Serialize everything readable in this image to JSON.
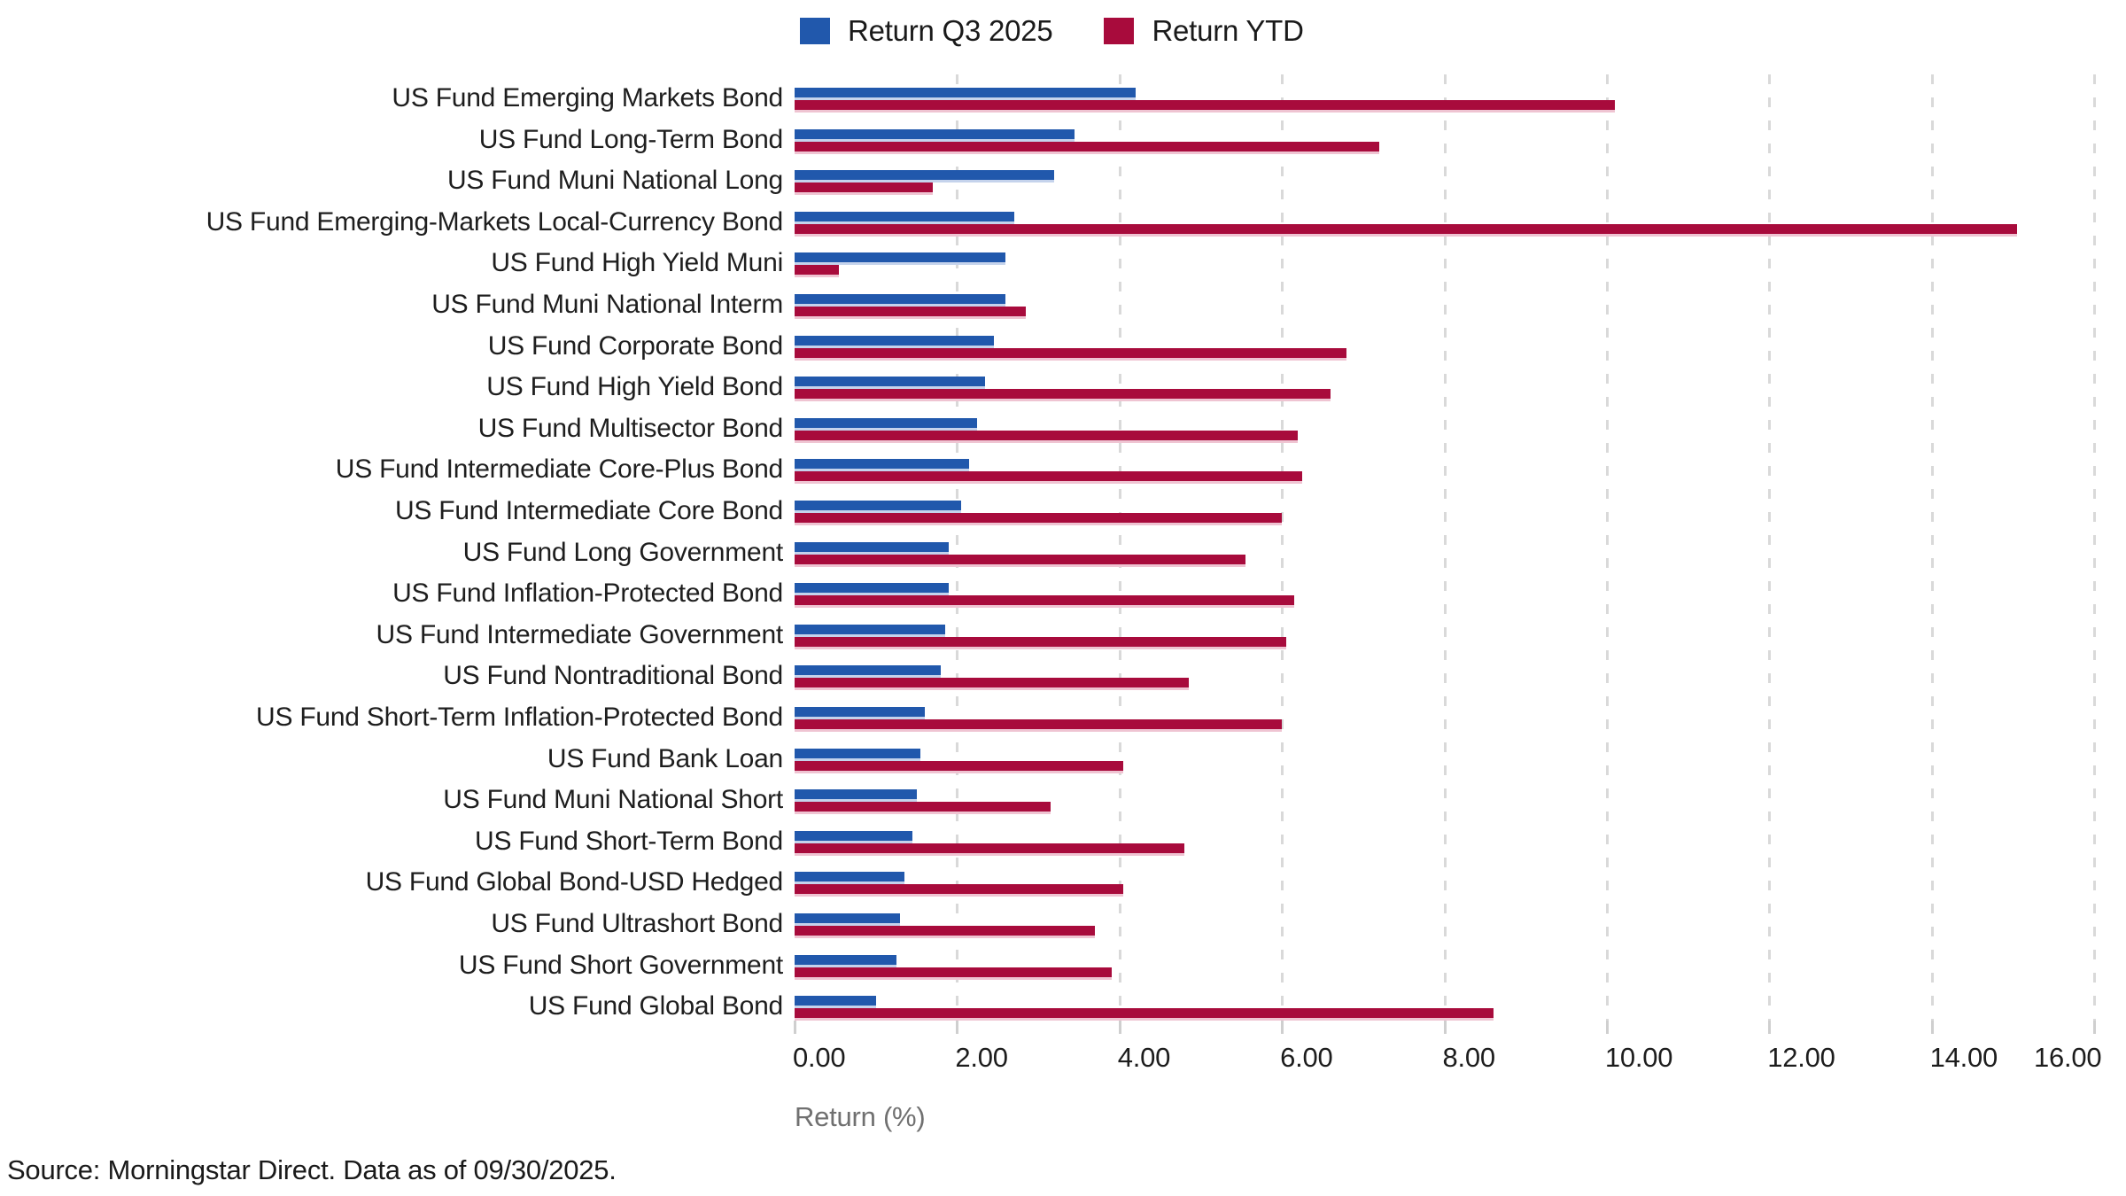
{
  "source_note": "Source: Morningstar Direct. Data as of 09/30/2025.",
  "colors": {
    "q3_blue": "#2158AC",
    "ytd_red": "#A80B3C",
    "gridline": "#d9d9d9",
    "tick": "#cfcfcf",
    "text_dark": "#1e1e1e",
    "text_gray": "#707070"
  },
  "chart_data": {
    "type": "bar",
    "orientation": "horizontal",
    "xlabel": "Return (%)",
    "xlim": [
      0,
      16
    ],
    "xticks": [
      0,
      2,
      4,
      6,
      8,
      10,
      12,
      14,
      16
    ],
    "xtick_labels": [
      "0.00",
      "2.00",
      "4.00",
      "6.00",
      "8.00",
      "10.00",
      "12.00",
      "14.00",
      "16.00"
    ],
    "grid": "dashed-vertical",
    "legend_position": "top-center",
    "categories": [
      "US Fund Emerging Markets Bond",
      "US Fund Long-Term Bond",
      "US Fund Muni National Long",
      "US Fund Emerging-Markets Local-Currency Bond",
      "US Fund High Yield Muni",
      "US Fund Muni National Interm",
      "US Fund Corporate Bond",
      "US Fund High Yield Bond",
      "US Fund Multisector Bond",
      "US Fund Intermediate Core-Plus Bond",
      "US Fund Intermediate Core Bond",
      "US Fund Long Government",
      "US Fund Inflation-Protected Bond",
      "US Fund Intermediate Government",
      "US Fund Nontraditional Bond",
      "US Fund Short-Term Inflation-Protected Bond",
      "US Fund Bank Loan",
      "US Fund Muni National Short",
      "US Fund Short-Term Bond",
      "US Fund Global Bond-USD Hedged",
      "US Fund Ultrashort Bond",
      "US Fund Short Government",
      "US Fund Global Bond"
    ],
    "series": [
      {
        "name": "Return Q3 2025",
        "color": "#2158AC",
        "values": [
          4.2,
          3.45,
          3.2,
          2.7,
          2.6,
          2.6,
          2.45,
          2.35,
          2.25,
          2.15,
          2.05,
          1.9,
          1.9,
          1.85,
          1.8,
          1.6,
          1.55,
          1.5,
          1.45,
          1.35,
          1.3,
          1.25,
          1.0
        ]
      },
      {
        "name": "Return YTD",
        "color": "#A80B3C",
        "values": [
          10.1,
          7.2,
          1.7,
          15.05,
          0.55,
          2.85,
          6.8,
          6.6,
          6.2,
          6.25,
          6.0,
          5.55,
          6.15,
          6.05,
          4.85,
          6.0,
          4.05,
          3.15,
          4.8,
          4.05,
          3.7,
          3.9,
          8.6
        ]
      }
    ]
  }
}
